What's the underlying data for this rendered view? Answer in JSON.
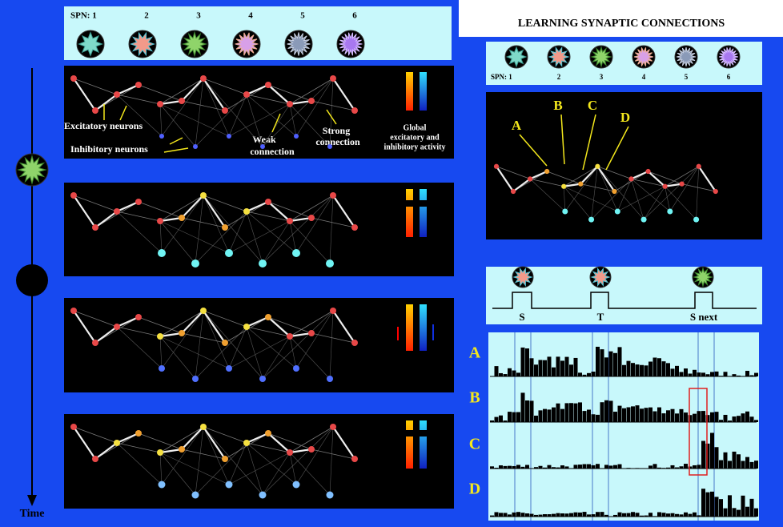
{
  "left": {
    "spn_label": "SPN: 1",
    "spn_numbers": [
      "2",
      "3",
      "4",
      "5",
      "6"
    ],
    "excitatory": "Excitatory neurons",
    "inhibitory": "Inhibitory neurons",
    "weak": [
      "Weak",
      "connection"
    ],
    "strong": [
      "Strong",
      "connection"
    ],
    "global": [
      "Global",
      "excitatory and",
      "inhibitory activity"
    ],
    "time": "Time"
  },
  "right": {
    "title": "LEARNING SYNAPTIC CONNECTIONS",
    "spn_label": "SPN: 1",
    "spn_numbers": [
      "2",
      "3",
      "4",
      "5",
      "6"
    ],
    "neuron_labels": [
      "A",
      "B",
      "C",
      "D"
    ],
    "timing": [
      "S",
      "T",
      "S next"
    ],
    "raster_labels": [
      "A",
      "B",
      "C",
      "D"
    ]
  }
}
